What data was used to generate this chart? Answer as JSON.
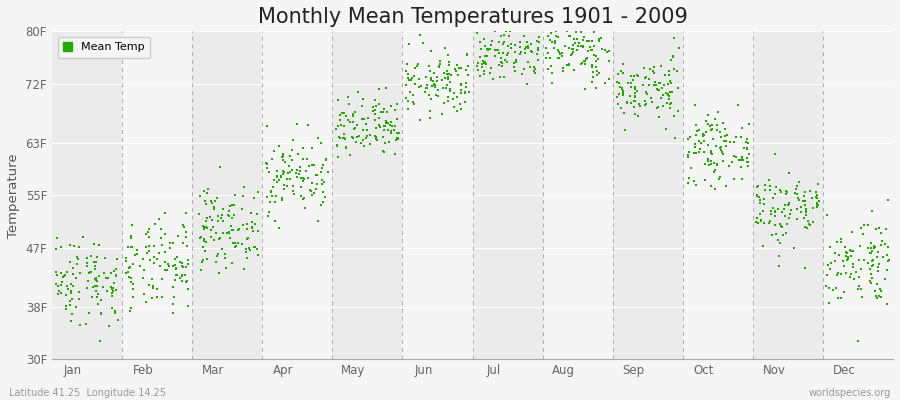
{
  "title": "Monthly Mean Temperatures 1901 - 2009",
  "ylabel": "Temperature",
  "xlabel_labels": [
    "Jan",
    "Feb",
    "Mar",
    "Apr",
    "May",
    "Jun",
    "Jul",
    "Aug",
    "Sep",
    "Oct",
    "Nov",
    "Dec"
  ],
  "ytick_labels": [
    "30F",
    "38F",
    "47F",
    "55F",
    "63F",
    "72F",
    "80F"
  ],
  "ytick_values": [
    30,
    38,
    47,
    55,
    63,
    72,
    80
  ],
  "ylim": [
    30,
    80
  ],
  "legend_label": "Mean Temp",
  "dot_color": "#22aa00",
  "dot_size": 3,
  "bg_even": "#ebebeb",
  "bg_odd": "#f5f5f5",
  "background_color": "#f5f5f5",
  "grid_color": "#ffffff",
  "footer_left": "Latitude 41.25  Longitude 14.25",
  "footer_right": "worldspecies.org",
  "title_fontsize": 15,
  "monthly_means": [
    42,
    44,
    50,
    58,
    65,
    72,
    77,
    77,
    71,
    62,
    53,
    45
  ],
  "monthly_stds": [
    3.5,
    3.5,
    3.0,
    3.0,
    2.5,
    2.5,
    2.5,
    2.5,
    2.5,
    2.5,
    3.0,
    3.5
  ],
  "n_years": 109,
  "seed": 42
}
